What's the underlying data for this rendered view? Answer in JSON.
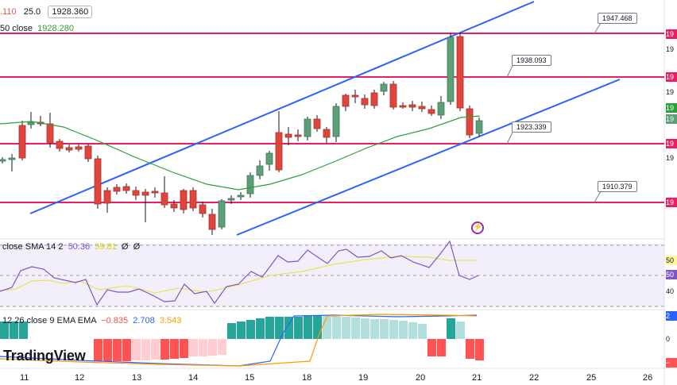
{
  "header": {
    "price_fragment": ".110",
    "indicator_value": "25.0",
    "price_box": "1928.360",
    "ma_label": "50 close",
    "ma_value": "1928.280"
  },
  "rsi_legend": {
    "label": "close SMA 14 2",
    "v1": "50.36",
    "v2": "59.81",
    "v3": "Ø",
    "v4": "Ø"
  },
  "macd_legend": {
    "label": "12 26 close 9 EMA EMA",
    "v1": "−0.835",
    "v2": "2.708",
    "v3": "3.543"
  },
  "callouts": [
    "1947.468",
    "1938.093",
    "1923.339",
    "1910.379"
  ],
  "brand": "TradingView",
  "x_axis": [
    "11",
    "12",
    "13",
    "14",
    "15",
    "18",
    "19",
    "20",
    "21",
    "22",
    "25",
    "26"
  ],
  "right_axis_labels": [
    "19",
    "19",
    "19",
    "19",
    "19",
    "19",
    "19",
    "19",
    "19",
    "50",
    "50",
    "40",
    "2",
    "0",
    "−"
  ],
  "colors": {
    "up": "#5c9e78",
    "down": "#e0453d",
    "channel": "#2962ff",
    "level": "#e91e63",
    "ma": "#2e9f3a",
    "rsi": "#7e57c2",
    "rsi_ma": "#e8e55a",
    "hist_pos": "#26a69a",
    "hist_pos_light": "#b2dfdb",
    "hist_neg": "#ff5252",
    "hist_neg_light": "#ffcdd2"
  },
  "icons": {
    "bolt": "lightning-icon"
  }
}
